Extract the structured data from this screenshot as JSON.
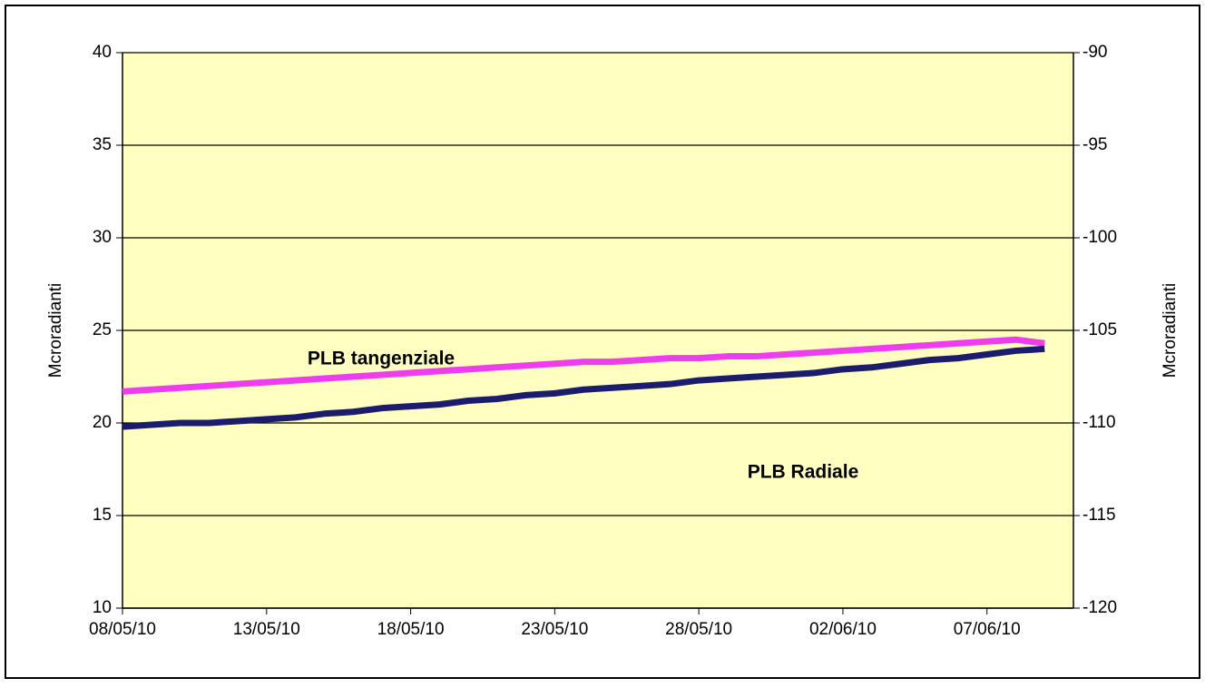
{
  "chart_data": {
    "type": "line",
    "y_label": "Mcroradianti",
    "y2_label": "Mcroradianti",
    "x": [
      "08/05/10",
      "09/05/10",
      "10/05/10",
      "11/05/10",
      "12/05/10",
      "13/05/10",
      "14/05/10",
      "15/05/10",
      "16/05/10",
      "17/05/10",
      "18/05/10",
      "19/05/10",
      "20/05/10",
      "21/05/10",
      "22/05/10",
      "23/05/10",
      "24/05/10",
      "25/05/10",
      "26/05/10",
      "27/05/10",
      "28/05/10",
      "29/05/10",
      "30/05/10",
      "31/05/10",
      "01/06/10",
      "02/06/10",
      "03/06/10",
      "04/06/10",
      "05/06/10",
      "06/06/10",
      "07/06/10",
      "08/06/10",
      "09/06/10"
    ],
    "series": [
      {
        "name": "PLB tangenziale",
        "color": "#ee3dee",
        "values": [
          21.7,
          21.8,
          21.9,
          22.0,
          22.1,
          22.2,
          22.3,
          22.4,
          22.5,
          22.6,
          22.7,
          22.8,
          22.9,
          23.0,
          23.1,
          23.2,
          23.3,
          23.3,
          23.4,
          23.5,
          23.5,
          23.6,
          23.6,
          23.7,
          23.8,
          23.9,
          24.0,
          24.1,
          24.2,
          24.3,
          24.4,
          24.5,
          24.3
        ]
      },
      {
        "name": "PLB Radiale",
        "color": "#1c1c6e",
        "values": [
          19.8,
          19.9,
          20.0,
          20.0,
          20.1,
          20.2,
          20.3,
          20.5,
          20.6,
          20.8,
          20.9,
          21.0,
          21.2,
          21.3,
          21.5,
          21.6,
          21.8,
          21.9,
          22.0,
          22.1,
          22.3,
          22.4,
          22.5,
          22.6,
          22.7,
          22.9,
          23.0,
          23.2,
          23.4,
          23.5,
          23.7,
          23.9,
          24.0
        ]
      }
    ],
    "xlim": [
      "08/05/10",
      "10/06/10"
    ],
    "xticks": [
      "08/05/10",
      "13/05/10",
      "18/05/10",
      "23/05/10",
      "28/05/10",
      "02/06/10",
      "07/06/10"
    ],
    "ylim": [
      10,
      40
    ],
    "yticks": [
      10,
      15,
      20,
      25,
      30,
      35,
      40
    ],
    "y2lim": [
      -120,
      -90
    ],
    "y2ticks": [
      -120,
      -115,
      -110,
      -105,
      -100,
      -95,
      -90
    ],
    "grid": true,
    "plot_background": "#ffffc0"
  }
}
